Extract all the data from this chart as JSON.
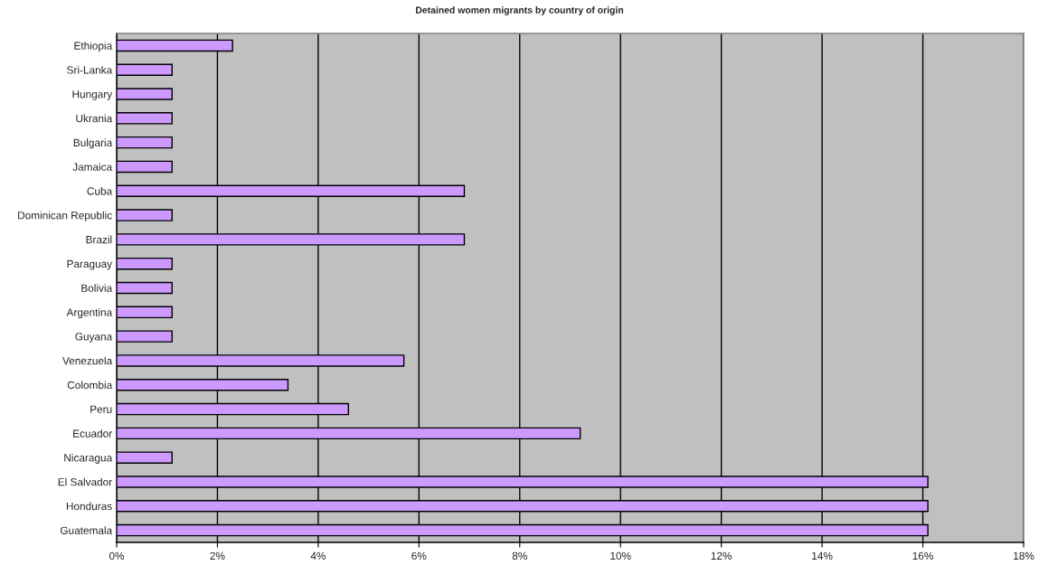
{
  "chart_data": {
    "type": "bar",
    "orientation": "horizontal",
    "title": "Detained women migrants by country of origin",
    "categories": [
      "Ethiopia",
      "Sri-Lanka",
      "Hungary",
      "Ukrania",
      "Bulgaria",
      "Jamaica",
      "Cuba",
      "Dominican Republic",
      "Brazil",
      "Paraguay",
      "Bolivia",
      "Argentina",
      "Guyana",
      "Venezuela",
      "Colombia",
      "Peru",
      "Ecuador",
      "Nicaragua",
      "El Salvador",
      "Honduras",
      "Guatemala"
    ],
    "values": [
      2.3,
      1.1,
      1.1,
      1.1,
      1.1,
      1.1,
      6.9,
      1.1,
      6.9,
      1.1,
      1.1,
      1.1,
      1.1,
      5.7,
      3.4,
      4.6,
      9.2,
      1.1,
      16.1,
      16.1,
      16.1
    ],
    "color": "#cc99ff",
    "xlim": [
      0,
      18
    ],
    "xticks": [
      {
        "value": 0,
        "label": "0%"
      },
      {
        "value": 2,
        "label": "2%"
      },
      {
        "value": 4,
        "label": "4%"
      },
      {
        "value": 6,
        "label": "6%"
      },
      {
        "value": 8,
        "label": "8%"
      },
      {
        "value": 10,
        "label": "10%"
      },
      {
        "value": 12,
        "label": "12%"
      },
      {
        "value": 14,
        "label": "14%"
      },
      {
        "value": 16,
        "label": "16%"
      },
      {
        "value": 18,
        "label": "18%"
      }
    ],
    "grid": "x"
  }
}
